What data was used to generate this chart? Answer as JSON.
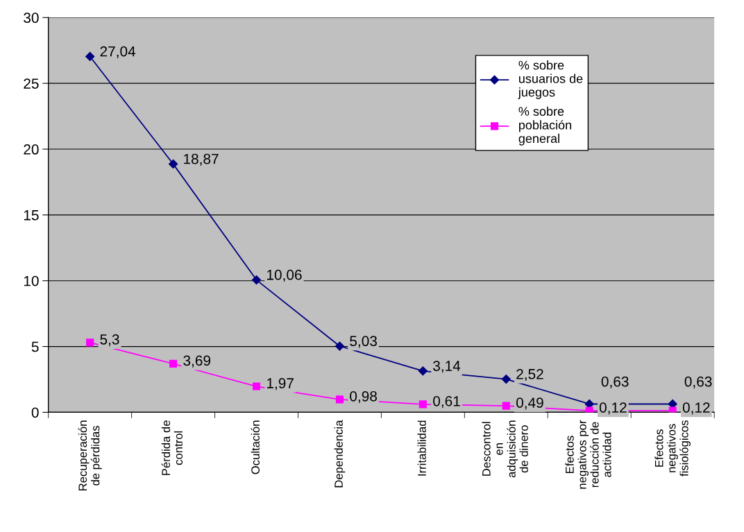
{
  "chart_data": {
    "type": "line",
    "categories": [
      "Recuperación\nde pérdidas",
      "Pérdida de\ncontrol",
      "Ocultación",
      "Dependencia",
      "Irritabilidad",
      "Descontrol\nen\nadquisición\nde dinero",
      "Efectos\nnegativos por\nreducción de\nactividad",
      "Efectos\nnegativos\nfisiológicos"
    ],
    "series": [
      {
        "name": "% sobre\nusuarios de\njuegos",
        "color": "#000080",
        "marker": "diamond",
        "values": [
          27.04,
          18.87,
          10.06,
          5.03,
          3.14,
          2.52,
          0.63,
          0.63
        ],
        "value_labels": [
          "27,04",
          "18,87",
          "10,06",
          "5,03",
          "3,14",
          "2,52",
          "0,63",
          "0,63"
        ]
      },
      {
        "name": "% sobre\npoblación\ngeneral",
        "color": "#ff00ff",
        "marker": "square",
        "values": [
          5.3,
          3.69,
          1.97,
          0.98,
          0.61,
          0.49,
          0.12,
          0.12
        ],
        "value_labels": [
          "5,3",
          "3,69",
          "1,97",
          "0,98",
          "0,61",
          "0,49",
          "0,12",
          "0,12"
        ]
      }
    ],
    "ylim": [
      0,
      30
    ],
    "yticks": [
      0,
      5,
      10,
      15,
      20,
      25,
      30
    ],
    "grid": "y",
    "legend": "top right"
  }
}
